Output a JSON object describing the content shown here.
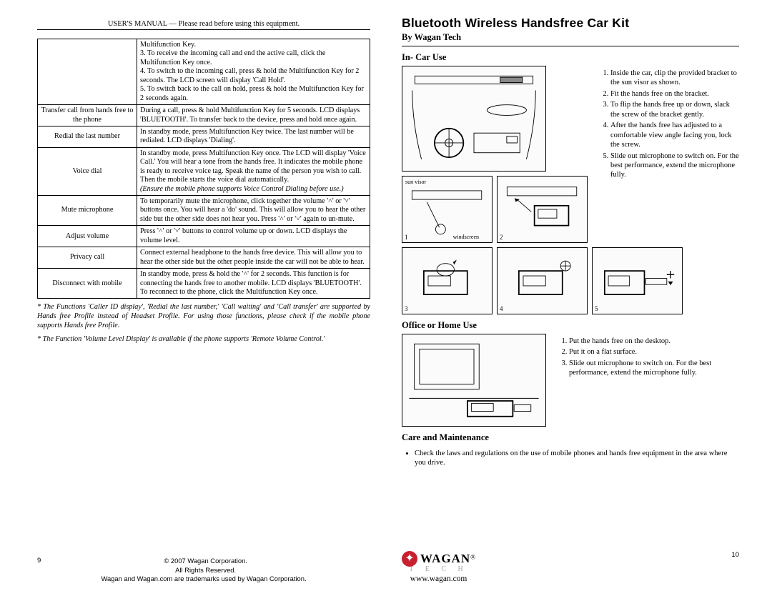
{
  "header_left": "USER'S MANUAL — Please read before using this equipment.",
  "title": "Bluetooth Wireless Handsfree Car Kit",
  "subtitle": "By Wagan Tech",
  "page_left_num": "9",
  "page_right_num": "10",
  "footer_copyright": "© 2007 Wagan Corporation.",
  "footer_rights": "All Rights Reserved.",
  "footer_tm": "Wagan and Wagan.com are trademarks used by Wagan Corporation.",
  "table": {
    "rows": [
      {
        "label": "",
        "desc": "Multifunction Key.\n3. To receive the incoming call and end the active call, click the Multifunction Key once.\n4. To switch to the incoming call, press & hold the Multifunction Key for 2 seconds. The LCD screen will display 'Call Hold'.\n5. To switch back to the call on hold, press & hold the Multifunction Key for 2 seconds again."
      },
      {
        "label": "Transfer call from hands free to the phone",
        "desc": "During a call, press & hold Multifunction Key for 5 seconds. LCD displays 'BLUETOOTH'. To transfer back to the device, press and hold once again."
      },
      {
        "label": "Redial the last number",
        "desc": "In standby mode, press Multifunction Key twice. The last number will be redialed. LCD displays 'Dialing'."
      },
      {
        "label": "Voice dial",
        "desc": "In standby mode, press Multifunction Key once. The LCD will display 'Voice Call.' You will hear a tone from the hands free. It indicates the mobile phone is ready to receive voice tag. Speak the name of the person you wish to call. Then the mobile starts the voice dial automatically.",
        "note": "(Ensure the mobile phone supports Voice Control Dialing before use.)"
      },
      {
        "label": "Mute microphone",
        "desc": "To temporarily mute the microphone, click together the volume '˄' or '˅' buttons once. You will hear a 'do' sound. This will allow you to hear the other side but the other side does not hear you. Press '˄' or '˅' again to un-mute."
      },
      {
        "label": "Adjust volume",
        "desc": "Press '˄' or '˅' buttons to control volume up or down. LCD displays the volume level."
      },
      {
        "label": "Privacy call",
        "desc": "Connect external headphone to the hands free device. This will allow you to hear the other side but the other people inside the car will not be able to hear."
      },
      {
        "label": "Disconnect with mobile",
        "desc": "In standby mode, press & hold the '˄' for 2 seconds. This function is for connecting the hands free to another mobile. LCD displays 'BLUETOOTH'. To reconnect to the phone, click the Multifunction Key once."
      }
    ]
  },
  "notes": [
    "* The Functions 'Caller ID display', 'Redial the last number,' 'Call waiting' and 'Call transfer' are supported by Hands free Profile instead of Headset Profile. For using those functions, please check if the mobile phone supports Hands free Profile.",
    "* The Function 'Volume Level Display' is available if the phone supports 'Remote Volume Control.'"
  ],
  "sections": {
    "incar_title": "In- Car Use",
    "incar_steps": [
      "Inside the car, clip the provided bracket to the sun visor as shown.",
      "Fit the hands free on the bracket.",
      "To flip the hands free up or down, slack the screw of the bracket gently.",
      "After the hands free has adjusted to a comfortable view angle facing you, lock the screw.",
      "Slide out microphone to switch on. For the best performance, extend the microphone fully."
    ],
    "office_title": "Office or Home Use",
    "office_steps": [
      "Put the hands free on the desktop.",
      "Put it on a flat surface.",
      "Slide out microphone to switch on. For the best performance, extend the microphone fully."
    ],
    "care_title": "Care and Maintenance",
    "care_bullet": "Check the laws and regulations on the use of mobile phones and hands free equipment in the area where you drive."
  },
  "illus_labels": {
    "sunvisor": "sun visor",
    "windscreen": "windscreen"
  },
  "logo": {
    "name": "WAGAN",
    "sub": "T E C H",
    "url": "www.wagan.com"
  }
}
